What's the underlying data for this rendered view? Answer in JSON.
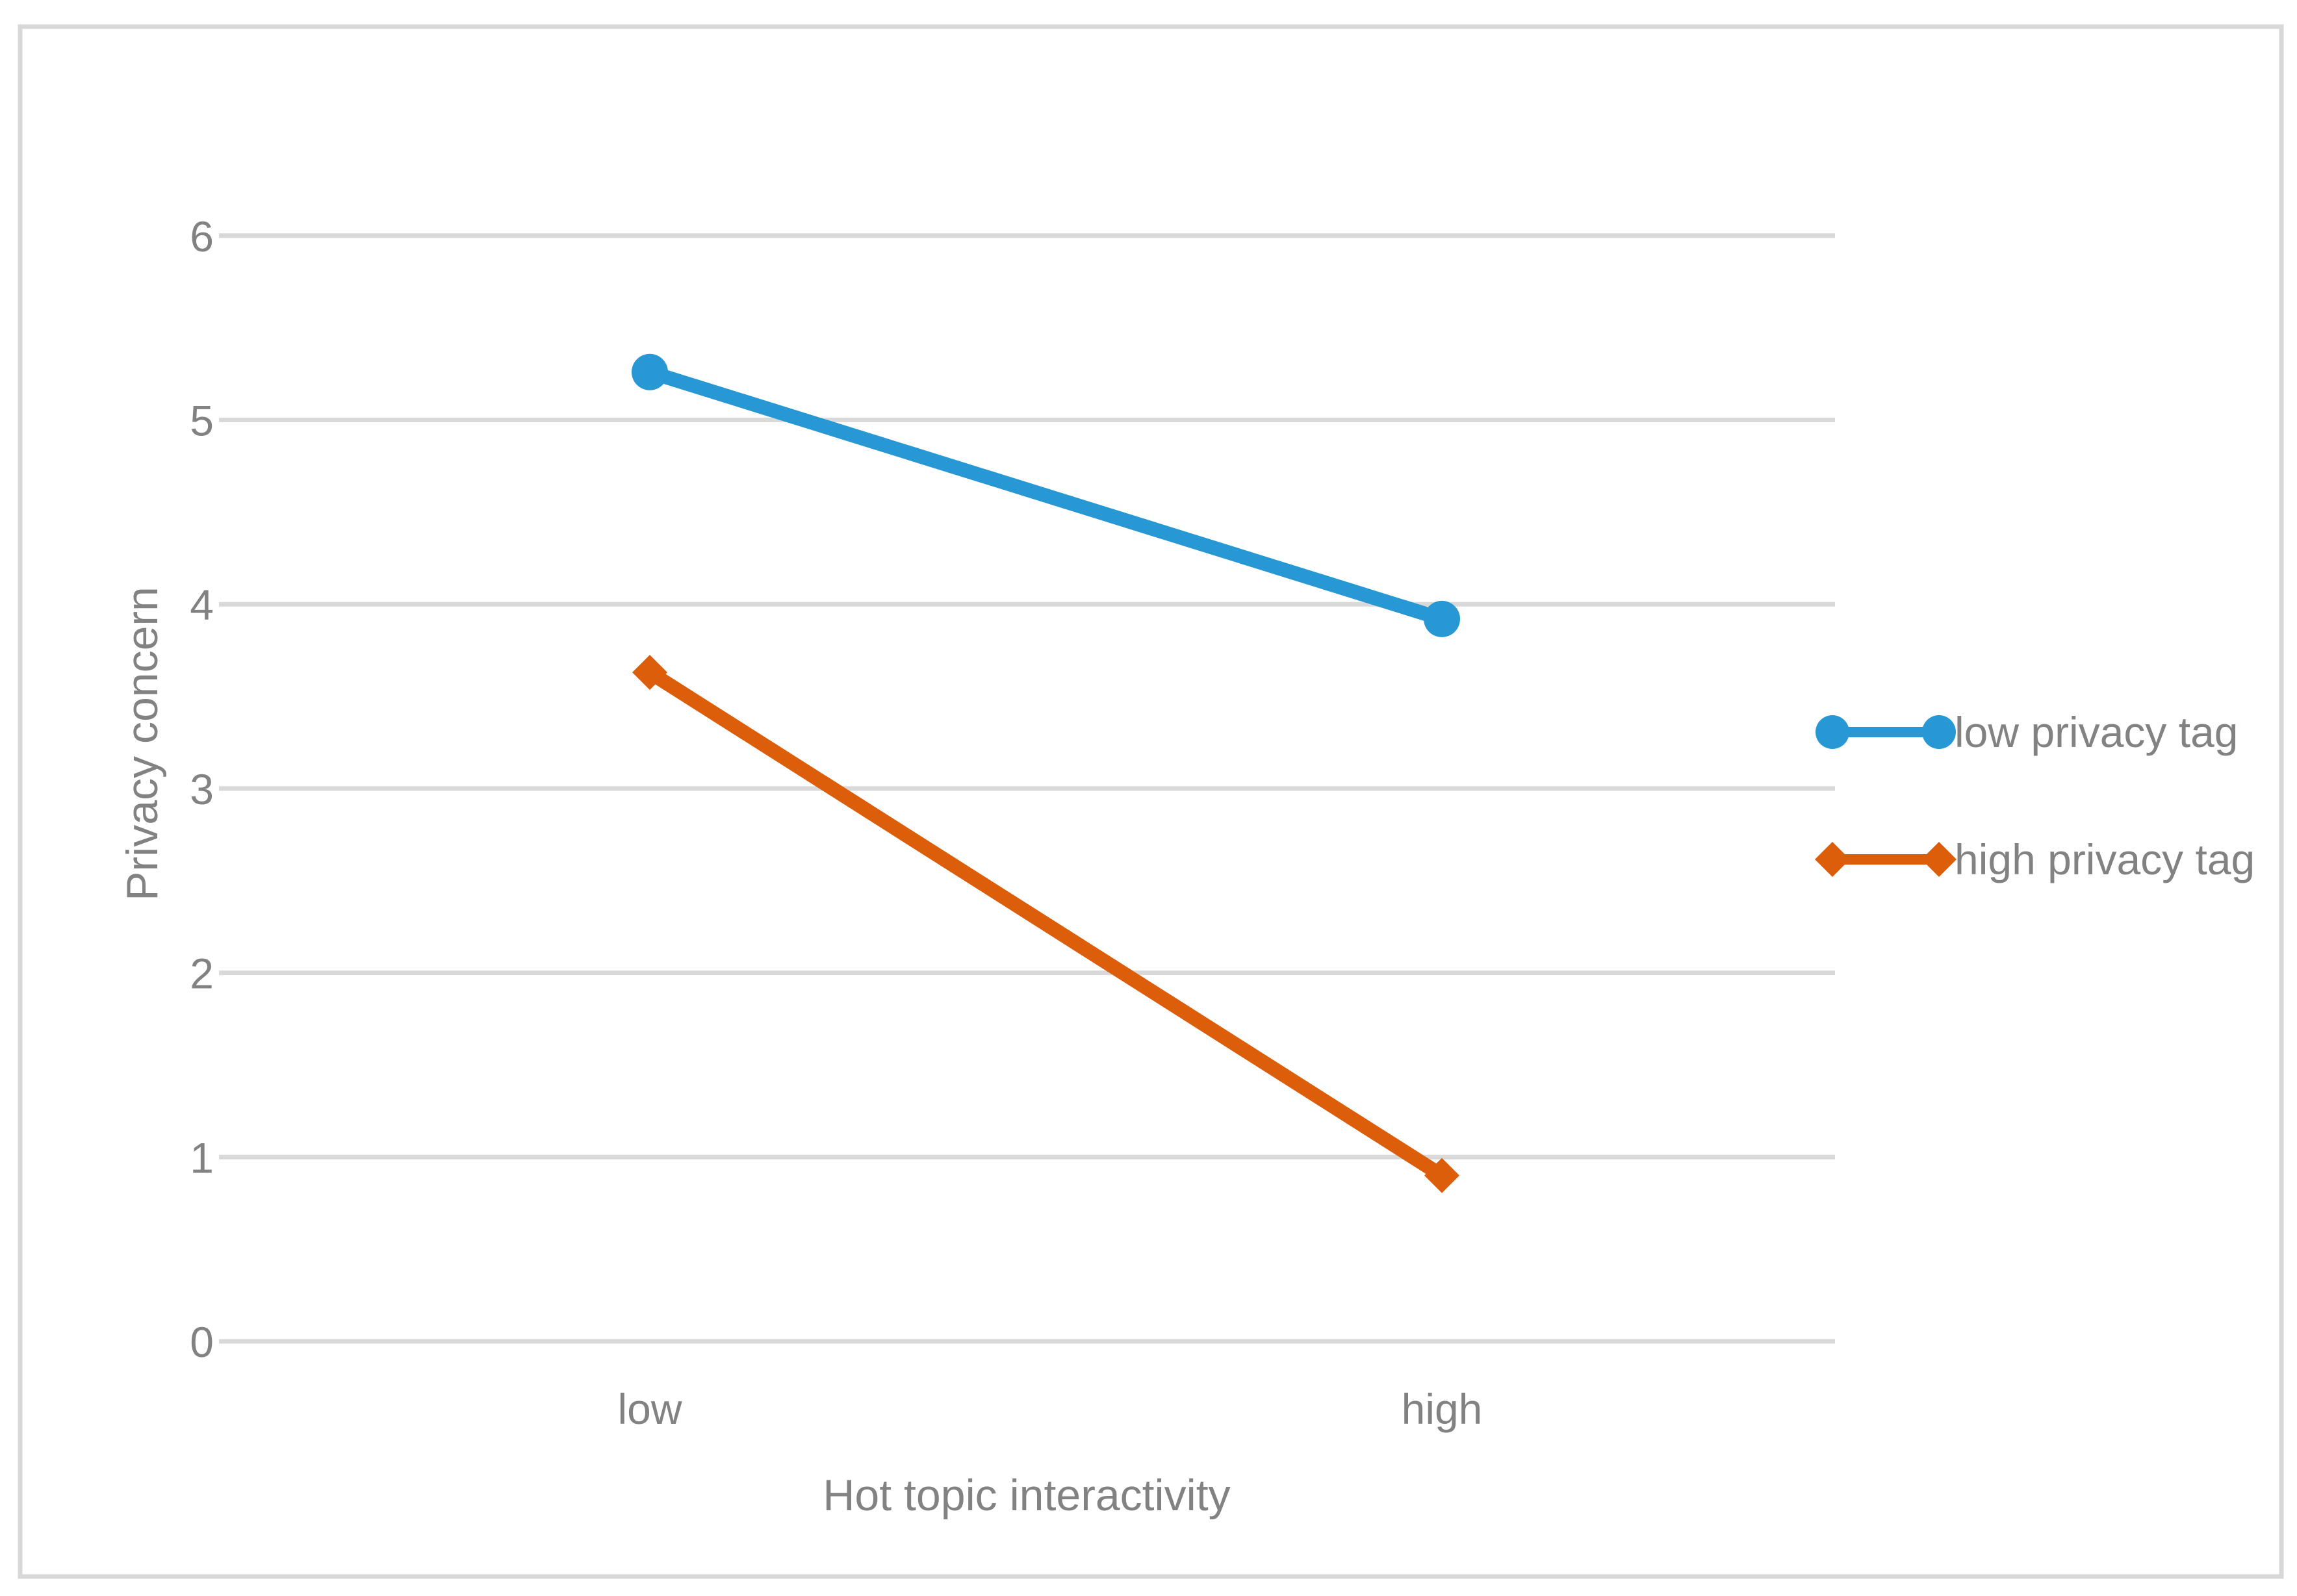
{
  "figure": {
    "background": "#ffffff",
    "frame_color": "#d8d8d8"
  },
  "chart_data": {
    "type": "line",
    "title": "",
    "xlabel": "Hot topic interactivity",
    "ylabel": "Privacy concern",
    "categories": [
      "low",
      "high"
    ],
    "series": [
      {
        "name": "low privacy tag",
        "color": "#2898d5",
        "marker": "circle",
        "values": [
          5.26,
          3.92
        ]
      },
      {
        "name": "high privacy tag",
        "color": "#dc5e0a",
        "marker": "diamond",
        "values": [
          3.63,
          0.9
        ]
      }
    ],
    "ylim": [
      0,
      6
    ],
    "yticks": [
      0,
      1,
      2,
      3,
      4,
      5,
      6
    ],
    "grid": "horizontal",
    "gridline_color": "#d9d9d9",
    "text_color": "#828282",
    "legend_position": "right-middle"
  }
}
